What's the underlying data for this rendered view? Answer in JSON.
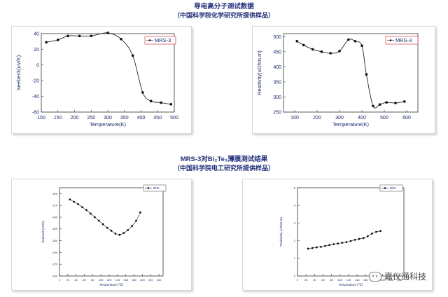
{
  "headings": {
    "top_line1": "导电高分子测试数据",
    "top_line2": "（中国科学院化学研究所提供样品）",
    "bottom_line1": "MRS-3对Bi₂Te₃薄膜测试结果",
    "bottom_line2": "（中国科学院电工研究所提供样品）"
  },
  "watermark": {
    "text": "嘉仪通科技",
    "icon": "wechat-icon"
  },
  "colors": {
    "ink": "#1a2a6c",
    "axis": "#333333",
    "legend_red": "#cc2222"
  },
  "chart_data": [
    {
      "type": "line",
      "xlabel": "Temperature(K)",
      "ylabel": "Seebeck(uV/K)",
      "xlim": [
        100,
        500
      ],
      "ylim": [
        -60,
        40
      ],
      "xticks": [
        100,
        150,
        200,
        250,
        300,
        350,
        400,
        450,
        500
      ],
      "yticks": [
        -60,
        -40,
        -20,
        0,
        20,
        40
      ],
      "legend": "top-right",
      "series": [
        {
          "name": "MRS-3",
          "x": [
            115,
            150,
            180,
            215,
            250,
            300,
            340,
            375,
            405,
            430,
            460,
            490
          ],
          "y": [
            29,
            32,
            37,
            37,
            37,
            41,
            33,
            12,
            -35,
            -46,
            -48,
            -50
          ]
        }
      ]
    },
    {
      "type": "line",
      "xlabel": "Temperature(K)",
      "ylabel": "Resitivity(uOhm.m)",
      "xlim": [
        50,
        650
      ],
      "ylim": [
        250,
        510
      ],
      "xticks": [
        100,
        200,
        300,
        400,
        500,
        600
      ],
      "yticks": [
        250,
        300,
        350,
        400,
        450,
        500
      ],
      "legend": "top-right",
      "series": [
        {
          "name": "MRS-3",
          "x": [
            110,
            140,
            180,
            220,
            260,
            300,
            340,
            370,
            400,
            420,
            450,
            480,
            510,
            550,
            590
          ],
          "y": [
            485,
            472,
            458,
            450,
            445,
            452,
            490,
            485,
            470,
            375,
            270,
            275,
            282,
            280,
            285
          ]
        }
      ]
    },
    {
      "type": "line",
      "xlabel": "Temperature (℃)",
      "ylabel": "Seebeck (uV/K)",
      "xlim": [
        0,
        250
      ],
      "ylim": [
        -240,
        -90
      ],
      "xticks": [
        0,
        20,
        40,
        60,
        80,
        100,
        120,
        140,
        160,
        180,
        200,
        220,
        240
      ],
      "yticks": [
        -240,
        -220,
        -200,
        -180,
        -160,
        -140,
        -120,
        -100
      ],
      "legend": "top-right",
      "series": [
        {
          "name": "BiTe",
          "x": [
            25,
            35,
            45,
            55,
            65,
            75,
            85,
            95,
            105,
            115,
            125,
            135,
            145,
            155,
            165,
            175,
            185,
            195
          ],
          "y": [
            -110,
            -114,
            -118,
            -123,
            -128,
            -134,
            -140,
            -146,
            -152,
            -158,
            -163,
            -168,
            -170,
            -167,
            -162,
            -155,
            -146,
            -132
          ]
        }
      ]
    },
    {
      "type": "line",
      "xlabel": "Temperature (℃)",
      "ylabel": "Resistivity (uOhm.m)",
      "xlim": [
        0,
        250
      ],
      "ylim": [
        0,
        5
      ],
      "xticks": [
        0,
        20,
        40,
        60,
        80,
        100,
        120,
        140,
        160,
        180,
        200,
        220,
        240
      ],
      "yticks": [
        0,
        1,
        2,
        3,
        4,
        5
      ],
      "legend": "top-right",
      "series": [
        {
          "name": "BiTe",
          "x": [
            25,
            35,
            45,
            55,
            65,
            75,
            85,
            95,
            105,
            115,
            125,
            135,
            145,
            155,
            165,
            175,
            185,
            195
          ],
          "y": [
            1.55,
            1.58,
            1.62,
            1.65,
            1.7,
            1.75,
            1.8,
            1.84,
            1.88,
            1.92,
            1.98,
            2.05,
            2.1,
            2.15,
            2.25,
            2.4,
            2.5,
            2.55
          ]
        }
      ]
    }
  ]
}
